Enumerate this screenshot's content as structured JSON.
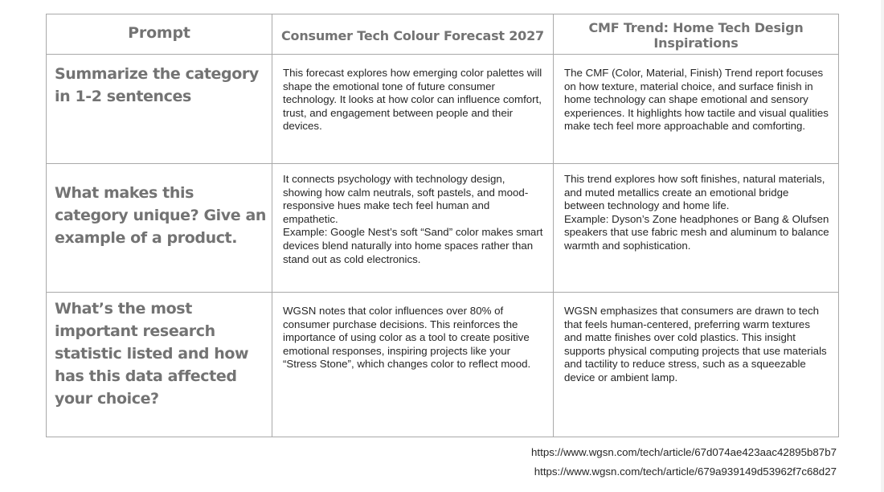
{
  "table": {
    "headers": {
      "prompt": "Prompt",
      "col1": "Consumer Tech Colour Forecast 2027",
      "col2": "CMF Trend: Home Tech Design Inspirations"
    },
    "rows": [
      {
        "prompt": "Summarize the category in 1-2 sentences",
        "col1": [
          "This forecast explores how emerging color palettes will shape the emotional tone of future consumer technology. It looks at how color can influence comfort, trust, and engagement between people and their devices."
        ],
        "col2": [
          "The CMF (Color, Material, Finish) Trend report focuses on how texture, material choice, and surface finish in home technology can shape emotional and sensory experiences. It highlights how tactile and visual qualities make tech feel more approachable and comforting."
        ]
      },
      {
        "prompt": "What makes this category unique? Give an example of a product.",
        "col1": [
          "It connects psychology with technology design, showing how calm neutrals, soft pastels, and mood-responsive hues make tech feel human and empathetic.",
          "Example: Google Nest’s soft “Sand” color makes smart devices blend naturally into home spaces rather than stand out as cold electronics."
        ],
        "col2": [
          "This trend explores how soft finishes, natural materials, and muted metallics create an emotional bridge between technology and home life.",
          "Example: Dyson’s Zone headphones or Bang & Olufsen speakers that use fabric mesh and aluminum to balance warmth and sophistication."
        ]
      },
      {
        "prompt": "What’s the most important research statistic listed and how has this data affected your choice?",
        "col1": [
          "WGSN notes that color influences over 80% of consumer purchase decisions. This reinforces the importance of using color as a tool to create positive emotional responses, inspiring projects like your “Stress Stone”, which changes color to reflect mood."
        ],
        "col2": [
          "WGSN emphasizes that consumers are drawn to tech that feels human-centered, preferring warm textures and matte finishes over cold plastics. This insight supports physical computing projects that use materials and tactility to reduce stress, such as a squeezable device or ambient lamp."
        ]
      }
    ]
  },
  "sources": [
    "https://www.wgsn.com/tech/article/67d074ae423aac42895b87b7",
    "https://www.wgsn.com/tech/article/679a939149d53962f7c68d27"
  ],
  "colors": {
    "border": "#a9a9a9",
    "heading_text": "#737373",
    "body_text": "#262626",
    "background": "#ffffff"
  }
}
